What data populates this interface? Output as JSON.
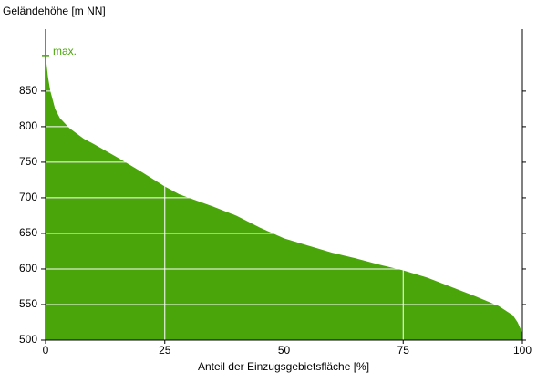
{
  "chart_data": {
    "type": "area",
    "y_label": "Geländehöhe [m NN]",
    "x_label": "Anteil der Einzugsgebietsfläche [%]",
    "annotation": "max.",
    "x": [
      0,
      0.5,
      1,
      2,
      3,
      5,
      8,
      10,
      15,
      20,
      25,
      28,
      30,
      35,
      40,
      45,
      50,
      55,
      60,
      65,
      70,
      75,
      80,
      85,
      90,
      95,
      98,
      99,
      100
    ],
    "values": [
      900,
      870,
      850,
      825,
      812,
      798,
      783,
      776,
      757,
      737,
      716,
      705,
      700,
      688,
      675,
      658,
      643,
      633,
      623,
      615,
      606,
      598,
      588,
      575,
      562,
      548,
      535,
      525,
      510
    ],
    "color": "#4aa50a",
    "xlim": [
      0,
      100
    ],
    "xticks": [
      0,
      25,
      50,
      75,
      100
    ],
    "ylim": [
      500,
      937
    ],
    "yticks": [
      500,
      550,
      600,
      650,
      700,
      750,
      800,
      850
    ],
    "grid": true
  }
}
